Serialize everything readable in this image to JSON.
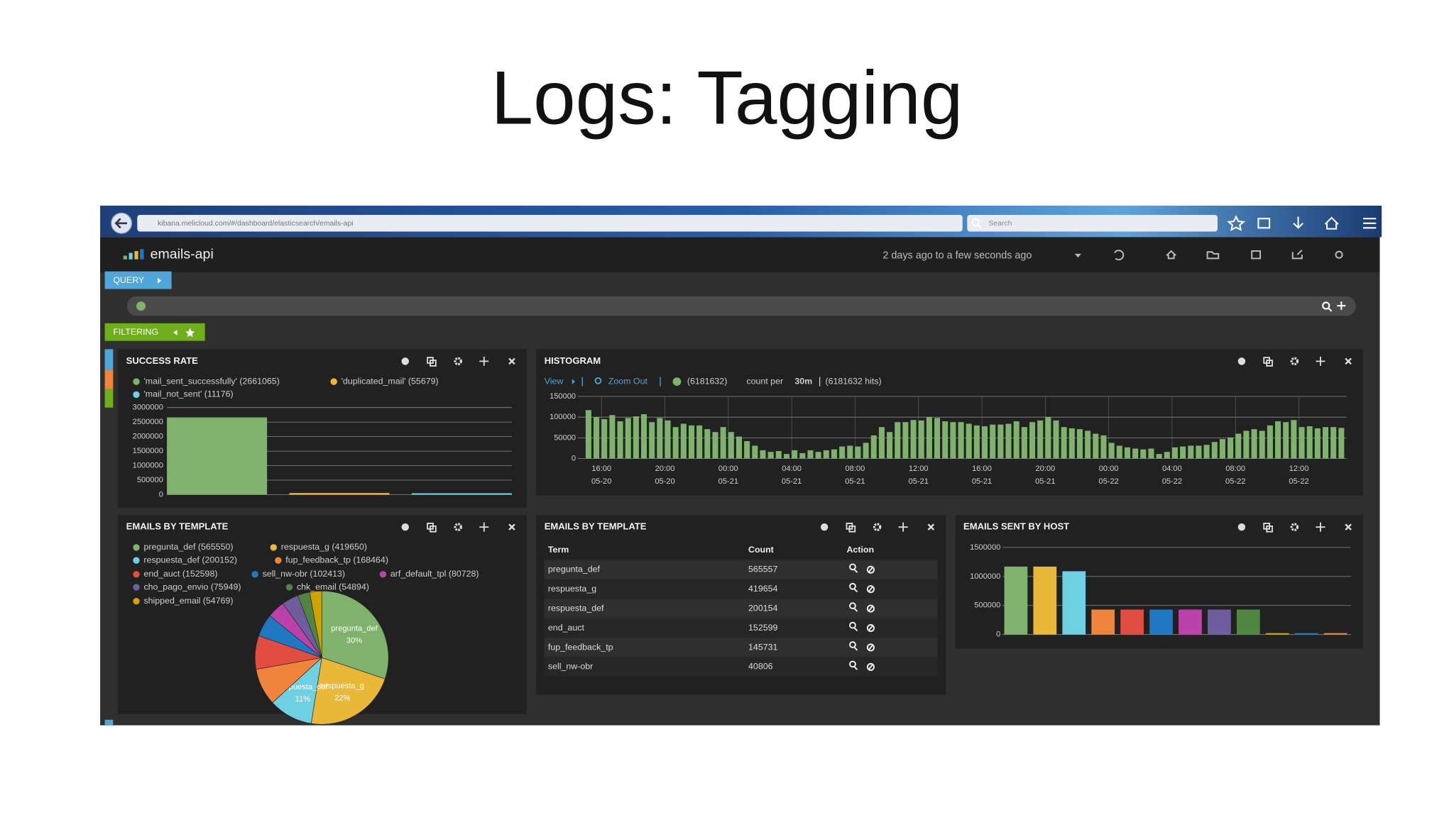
{
  "slide": {
    "title": "Logs: Tagging"
  },
  "browser": {
    "url": "kibana.melicloud.com/#/dashboard/elasticsearch/emails-api",
    "search_placeholder": "Search"
  },
  "dashboard": {
    "name": "emails-api",
    "time_range": "2 days ago to a few seconds ago",
    "query_button": "QUERY",
    "filtering_button": "FILTERING"
  },
  "success_rate": {
    "type": "bar",
    "title": "SUCCESS RATE",
    "series": [
      {
        "name": "'mail_sent_successfully' (2661065)",
        "color": "#7eb26d",
        "value": 2661065
      },
      {
        "name": "'duplicated_mail' (55679)",
        "color": "#eab839",
        "value": 55679
      },
      {
        "name": "'mail_not_sent' (11176)",
        "color": "#6ed0e0",
        "value": 11176
      }
    ],
    "ylim": [
      0,
      3000000
    ],
    "yticks": [
      0,
      500000,
      1000000,
      1500000,
      2000000,
      2500000,
      3000000
    ],
    "grid": true
  },
  "histogram": {
    "type": "bar",
    "title": "HISTOGRAM",
    "view": "View",
    "zoom_out": "Zoom Out",
    "legend_label": "(6181632)",
    "interval_prefix": "count per",
    "interval": "30m",
    "hits_label": "(6181632 hits)",
    "color": "#7eb26d",
    "x": [
      15,
      15.5,
      16,
      16.5,
      17,
      17.5,
      18,
      18.5,
      19,
      19.5,
      20,
      20.5,
      21,
      21.5,
      22,
      22.5,
      23,
      23.5,
      24,
      24.5,
      25,
      25.5,
      26,
      26.5,
      27,
      27.5,
      28,
      28.5,
      29,
      29.5,
      30,
      30.5,
      31,
      31.5,
      32,
      32.5,
      33,
      33.5,
      34,
      34.5,
      35,
      35.5,
      36,
      36.5,
      37,
      37.5,
      38,
      38.5,
      39,
      39.5,
      40,
      40.5,
      41,
      41.5,
      42,
      42.5,
      43,
      43.5,
      44,
      44.5,
      45,
      45.5,
      46,
      46.5,
      47,
      47.5,
      48,
      48.5,
      49,
      49.5,
      50,
      50.5,
      51,
      51.5,
      52,
      52.5,
      53,
      53.5,
      54,
      54.5,
      55,
      55.5,
      56,
      56.5,
      57,
      57.5,
      58,
      58.5,
      59,
      59.5,
      60,
      60.5,
      61,
      61.5,
      62,
      62.5
    ],
    "values": [
      117000,
      100000,
      95000,
      105000,
      90000,
      98000,
      102000,
      107000,
      88000,
      98000,
      92000,
      76000,
      84000,
      80000,
      80000,
      71000,
      64000,
      76000,
      64000,
      53000,
      42000,
      31000,
      20000,
      16000,
      18000,
      11000,
      20000,
      13000,
      20000,
      16000,
      20000,
      22000,
      29000,
      31000,
      29000,
      38000,
      56000,
      76000,
      64000,
      88000,
      88000,
      93000,
      92000,
      100000,
      98000,
      90000,
      88000,
      88000,
      84000,
      80000,
      78000,
      82000,
      82000,
      84000,
      90000,
      76000,
      88000,
      92000,
      100000,
      92000,
      76000,
      73000,
      71000,
      67000,
      60000,
      56000,
      38000,
      31000,
      27000,
      24000,
      22000,
      24000,
      11000,
      16000,
      27000,
      29000,
      31000,
      31000,
      33000,
      40000,
      47000,
      51000,
      60000,
      67000,
      71000,
      67000,
      80000,
      90000,
      88000,
      93000,
      76000,
      78000,
      73000,
      76000,
      76000,
      74000
    ],
    "xlim": [
      14.5,
      63
    ],
    "xticks": [
      {
        "value": 16,
        "label": "16:00",
        "date": "05-20"
      },
      {
        "value": 20,
        "label": "20:00",
        "date": "05-20"
      },
      {
        "value": 24,
        "label": "00:00",
        "date": "05-21"
      },
      {
        "value": 28,
        "label": "04:00",
        "date": "05-21"
      },
      {
        "value": 32,
        "label": "08:00",
        "date": "05-21"
      },
      {
        "value": 36,
        "label": "12:00",
        "date": "05-21"
      },
      {
        "value": 40,
        "label": "16:00",
        "date": "05-21"
      },
      {
        "value": 44,
        "label": "20:00",
        "date": "05-21"
      },
      {
        "value": 48,
        "label": "00:00",
        "date": "05-22"
      },
      {
        "value": 52,
        "label": "04:00",
        "date": "05-22"
      },
      {
        "value": 56,
        "label": "08:00",
        "date": "05-22"
      },
      {
        "value": 60,
        "label": "12:00",
        "date": "05-22"
      }
    ],
    "ylim": [
      0,
      150000
    ],
    "yticks": [
      0,
      50000,
      100000,
      150000
    ],
    "grid": true
  },
  "template_pie": {
    "type": "pie",
    "title": "EMAILS BY TEMPLATE",
    "series": [
      {
        "name": "pregunta_def (565550)",
        "color": "#7eb26d",
        "value": 565550
      },
      {
        "name": "respuesta_g (419650)",
        "color": "#eab839",
        "value": 419650
      },
      {
        "name": "respuesta_def (200152)",
        "color": "#6ed0e0",
        "value": 200152
      },
      {
        "name": "fup_feedback_tp (168464)",
        "color": "#ef843c",
        "value": 168464
      },
      {
        "name": "end_auct (152598)",
        "color": "#e24d42",
        "value": 152598
      },
      {
        "name": "sell_nw-obr (102413)",
        "color": "#1f78c1",
        "value": 102413
      },
      {
        "name": "arf_default_tpl (80728)",
        "color": "#ba43a9",
        "value": 80728
      },
      {
        "name": "cho_pago_envio (75949)",
        "color": "#705da0",
        "value": 75949
      },
      {
        "name": "chk_email (54894)",
        "color": "#508642",
        "value": 54894
      },
      {
        "name": "shipped_email (54769)",
        "color": "#cca300",
        "value": 54769
      }
    ],
    "slice_labels": [
      {
        "name": "pregunta_def",
        "percent": "30%"
      },
      {
        "name": "respuesta_g",
        "percent": "22%"
      },
      {
        "name": "respuesta_def",
        "percent": "11%"
      }
    ]
  },
  "template_table": {
    "title": "EMAILS BY TEMPLATE",
    "columns": [
      "Term",
      "Count",
      "Action"
    ],
    "rows": [
      [
        "pregunta_def",
        565557
      ],
      [
        "respuesta_g",
        419654
      ],
      [
        "respuesta_def",
        200154
      ],
      [
        "end_auct",
        152599
      ],
      [
        "fup_feedback_tp",
        145731
      ],
      [
        "sell_nw-obr",
        40806
      ]
    ]
  },
  "host": {
    "type": "bar",
    "title": "EMAILS SENT BY HOST",
    "values": [
      1170000,
      1170000,
      1090000,
      430000,
      430000,
      430000,
      430000,
      430000,
      430000,
      8000,
      6000,
      5000
    ],
    "colors": [
      "#7eb26d",
      "#eab839",
      "#6ed0e0",
      "#ef843c",
      "#e24d42",
      "#1f78c1",
      "#ba43a9",
      "#705da0",
      "#508642",
      "#cca300",
      "#1f78c1",
      "#ef843c"
    ],
    "ylim": [
      0,
      1500000
    ],
    "yticks": [
      0,
      500000,
      1000000,
      1500000
    ],
    "grid": true
  }
}
